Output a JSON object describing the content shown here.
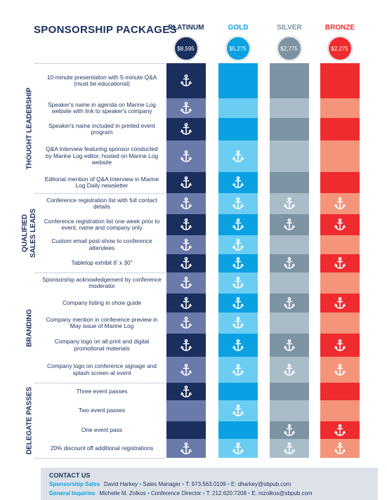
{
  "header": {
    "title": "SPONSORSHIP PACKAGES"
  },
  "tiers": [
    {
      "name": "PLATINUM",
      "price": "$8,595"
    },
    {
      "name": "GOLD",
      "price": "$5,275"
    },
    {
      "name": "SILVER",
      "price": "$2,775"
    },
    {
      "name": "BRONZE",
      "price": "$2,275"
    }
  ],
  "sections": [
    {
      "label": "THOUGHT LEADERSHIP",
      "rows": [
        {
          "text": "10-minute presentation with 5-minute Q&A (must be educational)",
          "included": [
            true,
            false,
            false,
            false
          ]
        },
        {
          "text": "Speaker's name in agenda on Marine Log website with link to speaker's company",
          "included": [
            true,
            false,
            false,
            false
          ]
        },
        {
          "text": "Speaker's name included in printed event program",
          "included": [
            true,
            false,
            false,
            false
          ]
        },
        {
          "text": "Q&A Interview featuring sponsor conducted by Marine Log editor, hosted on Marine Log website",
          "included": [
            true,
            true,
            false,
            false
          ]
        },
        {
          "text": "Editorial mention of Q&A Interview in Marine Log Daily newsletter",
          "included": [
            true,
            true,
            false,
            false
          ]
        }
      ]
    },
    {
      "label": "QUALIFIED SALES LEADS",
      "rows": [
        {
          "text": "Conference registration list with full contact details",
          "included": [
            true,
            true,
            true,
            true
          ]
        },
        {
          "text": "Conference registration list one week prior to event, name and company only",
          "included": [
            true,
            true,
            true,
            true
          ]
        },
        {
          "text": "Custom email post-show to conference attendees",
          "included": [
            true,
            true,
            false,
            false
          ]
        },
        {
          "text": "Tabletop exhibit 6' x 30\"",
          "included": [
            true,
            true,
            true,
            true
          ]
        }
      ]
    },
    {
      "label": "BRANDING",
      "rows": [
        {
          "text": "Sponsorship acknowledgement by conference moderator",
          "included": [
            true,
            true,
            false,
            false
          ]
        },
        {
          "text": "Company listing in show guide",
          "included": [
            true,
            true,
            true,
            true
          ]
        },
        {
          "text": "Company mention in conference preview in May issue of Marine Log",
          "included": [
            true,
            true,
            false,
            false
          ]
        },
        {
          "text": "Company logo on all print and digital promotional materials",
          "included": [
            true,
            true,
            true,
            true
          ]
        },
        {
          "text": "Company logo on conference signage and splash screen at event",
          "included": [
            true,
            true,
            true,
            true
          ]
        }
      ]
    },
    {
      "label": "DELEGATE PASSES",
      "rows": [
        {
          "text": "Three event passes",
          "included": [
            true,
            false,
            false,
            false
          ]
        },
        {
          "text": "Two event passes",
          "included": [
            false,
            true,
            false,
            false
          ]
        },
        {
          "text": "One event pass",
          "included": [
            false,
            false,
            true,
            true
          ]
        },
        {
          "text": "20% discount off additional registrations",
          "included": [
            true,
            true,
            true,
            true
          ]
        }
      ]
    }
  ],
  "contact": {
    "title": "CONTACT US",
    "lines": [
      {
        "label": "Sponsorship Sales",
        "items": [
          "David Harkey",
          "Sales Manager",
          "T: 973.563.0109",
          "E: dharkey@sbpub.com"
        ]
      },
      {
        "label": "General Inquiries",
        "items": [
          "Michelle M. Zolkos",
          "Conference Director",
          "T: 212.620.7208",
          "E: mzolkos@sbpub.com"
        ]
      }
    ]
  }
}
